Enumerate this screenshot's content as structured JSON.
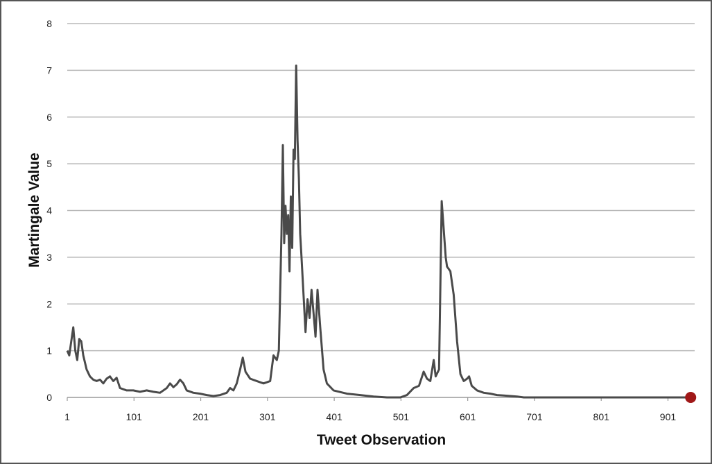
{
  "chart_data": {
    "type": "line",
    "title": "",
    "xlabel": "Tweet Observation",
    "ylabel": "Martingale Value",
    "xlim": [
      1,
      941
    ],
    "ylim": [
      0,
      8
    ],
    "x_ticks": [
      "1",
      "101",
      "201",
      "301",
      "401",
      "501",
      "601",
      "701",
      "801",
      "901"
    ],
    "y_ticks": [
      "0",
      "1",
      "2",
      "3",
      "4",
      "5",
      "6",
      "7",
      "8"
    ],
    "grid": true,
    "legend": "none",
    "colors": {
      "line": "#4a4a4a",
      "marker": "#a01818",
      "grid": "#b8b8b8"
    },
    "series": [
      {
        "values": [
          [
            1,
            1.0
          ],
          [
            4,
            0.9
          ],
          [
            7,
            1.2
          ],
          [
            10,
            1.5
          ],
          [
            13,
            1.0
          ],
          [
            16,
            0.8
          ],
          [
            19,
            1.25
          ],
          [
            22,
            1.2
          ],
          [
            25,
            0.9
          ],
          [
            30,
            0.6
          ],
          [
            35,
            0.45
          ],
          [
            40,
            0.38
          ],
          [
            45,
            0.35
          ],
          [
            50,
            0.38
          ],
          [
            55,
            0.3
          ],
          [
            60,
            0.4
          ],
          [
            65,
            0.45
          ],
          [
            70,
            0.35
          ],
          [
            75,
            0.42
          ],
          [
            80,
            0.2
          ],
          [
            90,
            0.15
          ],
          [
            100,
            0.15
          ],
          [
            110,
            0.12
          ],
          [
            120,
            0.15
          ],
          [
            130,
            0.12
          ],
          [
            140,
            0.1
          ],
          [
            150,
            0.2
          ],
          [
            155,
            0.3
          ],
          [
            160,
            0.22
          ],
          [
            165,
            0.28
          ],
          [
            170,
            0.38
          ],
          [
            175,
            0.3
          ],
          [
            180,
            0.15
          ],
          [
            190,
            0.1
          ],
          [
            200,
            0.08
          ],
          [
            210,
            0.05
          ],
          [
            220,
            0.03
          ],
          [
            230,
            0.05
          ],
          [
            240,
            0.1
          ],
          [
            245,
            0.2
          ],
          [
            250,
            0.15
          ],
          [
            255,
            0.3
          ],
          [
            260,
            0.6
          ],
          [
            264,
            0.85
          ],
          [
            268,
            0.55
          ],
          [
            275,
            0.4
          ],
          [
            285,
            0.35
          ],
          [
            295,
            0.3
          ],
          [
            305,
            0.35
          ],
          [
            310,
            0.9
          ],
          [
            315,
            0.8
          ],
          [
            318,
            1.0
          ],
          [
            322,
            3.5
          ],
          [
            324,
            5.4
          ],
          [
            326,
            3.3
          ],
          [
            328,
            4.1
          ],
          [
            330,
            3.5
          ],
          [
            332,
            3.9
          ],
          [
            334,
            2.7
          ],
          [
            336,
            4.3
          ],
          [
            338,
            3.2
          ],
          [
            340,
            5.3
          ],
          [
            342,
            5.1
          ],
          [
            344,
            7.1
          ],
          [
            346,
            5.5
          ],
          [
            348,
            4.7
          ],
          [
            350,
            3.5
          ],
          [
            352,
            3.0
          ],
          [
            355,
            2.2
          ],
          [
            358,
            1.4
          ],
          [
            361,
            2.1
          ],
          [
            364,
            1.7
          ],
          [
            367,
            2.3
          ],
          [
            370,
            1.8
          ],
          [
            373,
            1.3
          ],
          [
            376,
            2.3
          ],
          [
            380,
            1.5
          ],
          [
            385,
            0.6
          ],
          [
            390,
            0.3
          ],
          [
            400,
            0.15
          ],
          [
            420,
            0.08
          ],
          [
            440,
            0.05
          ],
          [
            460,
            0.02
          ],
          [
            480,
            0.0
          ],
          [
            500,
            0.0
          ],
          [
            510,
            0.05
          ],
          [
            520,
            0.2
          ],
          [
            528,
            0.25
          ],
          [
            535,
            0.55
          ],
          [
            540,
            0.4
          ],
          [
            545,
            0.35
          ],
          [
            550,
            0.8
          ],
          [
            553,
            0.45
          ],
          [
            558,
            0.6
          ],
          [
            562,
            4.2
          ],
          [
            565,
            3.6
          ],
          [
            568,
            3.0
          ],
          [
            570,
            2.8
          ],
          [
            575,
            2.7
          ],
          [
            580,
            2.2
          ],
          [
            585,
            1.2
          ],
          [
            590,
            0.5
          ],
          [
            595,
            0.35
          ],
          [
            600,
            0.4
          ],
          [
            603,
            0.45
          ],
          [
            607,
            0.25
          ],
          [
            615,
            0.15
          ],
          [
            625,
            0.1
          ],
          [
            635,
            0.08
          ],
          [
            645,
            0.05
          ],
          [
            655,
            0.04
          ],
          [
            665,
            0.03
          ],
          [
            675,
            0.02
          ],
          [
            685,
            0.0
          ],
          [
            700,
            0.0
          ],
          [
            800,
            0.0
          ],
          [
            900,
            0.0
          ],
          [
            935,
            0.0
          ]
        ]
      }
    ],
    "end_marker": {
      "x": 935,
      "y": 0.0
    }
  }
}
